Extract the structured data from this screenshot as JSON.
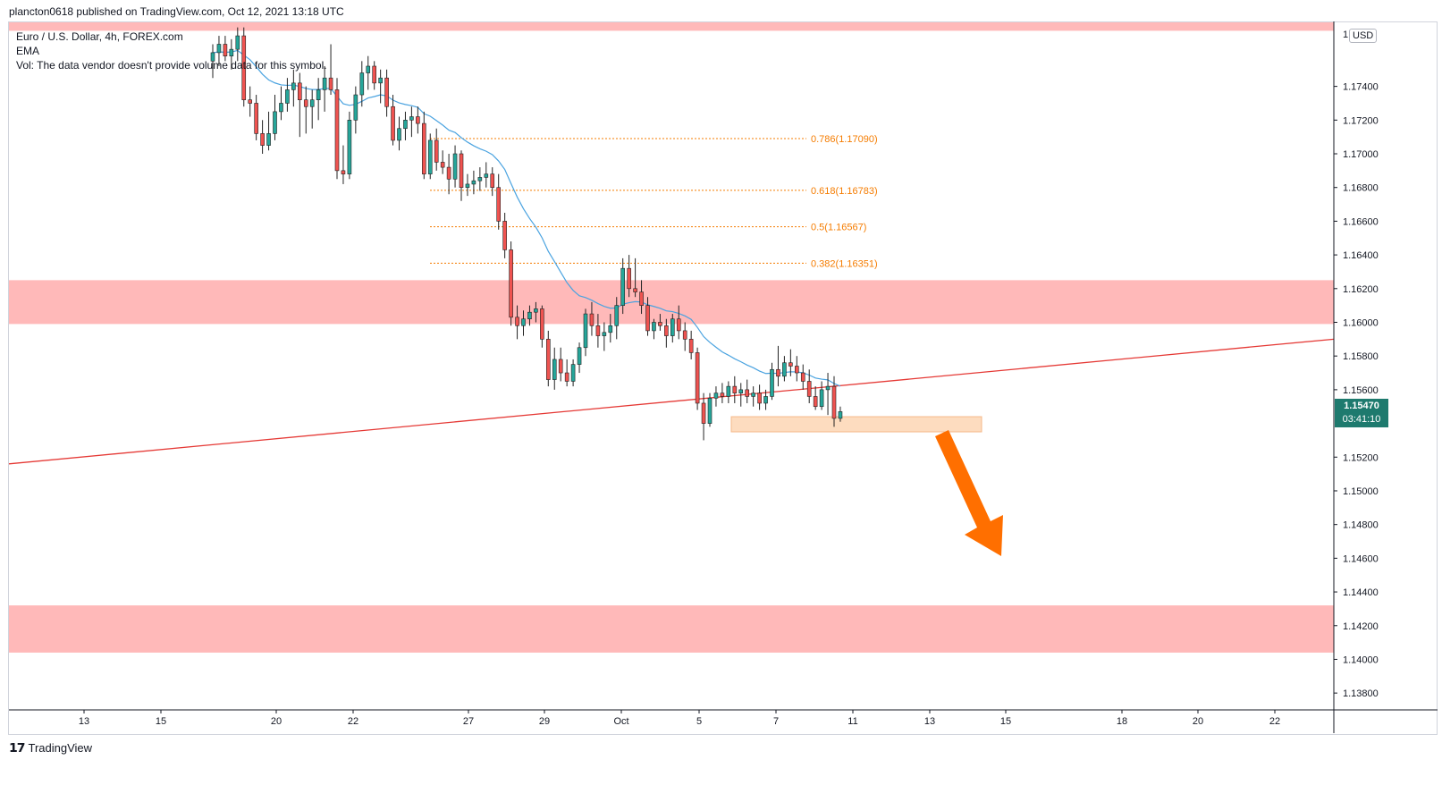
{
  "header": {
    "published": "plancton0618 published on TradingView.com, Oct 12, 2021 13:18 UTC"
  },
  "legend": {
    "symbol": "Euro / U.S. Dollar, 4h, FOREX.com",
    "indicator": "EMA",
    "volume": "Vol: The data vendor doesn't provide volume data for this symbol."
  },
  "footer": {
    "brand": "TradingView"
  },
  "price_axis": {
    "currency": "USD",
    "top_label": "1.1..."
  },
  "last_price": {
    "price": "1.15470",
    "countdown": "03:41:10"
  },
  "colors": {
    "bull": "#26a69a",
    "bear": "#ef5350",
    "ema": "#4aa3e0",
    "zone": "#ffb9b9",
    "support_box": "#fddcbf",
    "fib": "#f57c00",
    "trendline": "#e53935",
    "arrow": "#ff6f00"
  },
  "chart_data": {
    "type": "candlestick",
    "y_axis": {
      "range": [
        1.137,
        1.1778
      ],
      "ticks": [
        1.174,
        1.172,
        1.17,
        1.168,
        1.166,
        1.164,
        1.162,
        1.16,
        1.158,
        1.156,
        1.152,
        1.15,
        1.148,
        1.146,
        1.144,
        1.142,
        1.14,
        1.138
      ]
    },
    "x_axis": {
      "labels": [
        "13",
        "15",
        "20",
        "22",
        "27",
        "29",
        "Oct",
        "5",
        "7",
        "11",
        "13",
        "15",
        "18",
        "20",
        "22"
      ]
    },
    "fibonacci": [
      {
        "label": "0.786(1.17090)",
        "level": 1.1709
      },
      {
        "label": "0.618(1.16783)",
        "level": 1.16783
      },
      {
        "label": "0.5(1.16567)",
        "level": 1.16567
      },
      {
        "label": "0.382(1.16351)",
        "level": 1.16351
      }
    ],
    "zones": [
      {
        "name": "resistance-zone-top",
        "from": 1.1773,
        "to": 1.1778
      },
      {
        "name": "resistance-zone",
        "from": 1.1599,
        "to": 1.1625
      },
      {
        "name": "lower-zone",
        "from": 1.1404,
        "to": 1.1432
      }
    ],
    "support_box": {
      "from": 1.1535,
      "to": 1.1544
    },
    "trendline": {
      "start": 1.1516,
      "end": 1.159
    },
    "candles": [
      [
        1.1755,
        1.1765,
        1.1745,
        1.176
      ],
      [
        1.176,
        1.177,
        1.1752,
        1.1765
      ],
      [
        1.1765,
        1.177,
        1.1755,
        1.1758
      ],
      [
        1.1758,
        1.1768,
        1.175,
        1.1762
      ],
      [
        1.1762,
        1.1775,
        1.1755,
        1.177
      ],
      [
        1.177,
        1.1775,
        1.1728,
        1.1732
      ],
      [
        1.1732,
        1.174,
        1.1722,
        1.173
      ],
      [
        1.173,
        1.1735,
        1.1708,
        1.1712
      ],
      [
        1.1712,
        1.172,
        1.17,
        1.1705
      ],
      [
        1.1705,
        1.1725,
        1.1702,
        1.1712
      ],
      [
        1.1712,
        1.1735,
        1.1708,
        1.1725
      ],
      [
        1.1725,
        1.174,
        1.172,
        1.173
      ],
      [
        1.173,
        1.1745,
        1.1725,
        1.1738
      ],
      [
        1.1738,
        1.175,
        1.1728,
        1.1742
      ],
      [
        1.1742,
        1.1748,
        1.171,
        1.1732
      ],
      [
        1.1732,
        1.174,
        1.1712,
        1.1728
      ],
      [
        1.1728,
        1.1738,
        1.1715,
        1.1732
      ],
      [
        1.1732,
        1.1745,
        1.172,
        1.1738
      ],
      [
        1.1738,
        1.1752,
        1.1725,
        1.1745
      ],
      [
        1.1745,
        1.1765,
        1.1735,
        1.1738
      ],
      [
        1.1738,
        1.1745,
        1.1685,
        1.169
      ],
      [
        1.169,
        1.1705,
        1.1682,
        1.1688
      ],
      [
        1.1688,
        1.1725,
        1.1685,
        1.172
      ],
      [
        1.172,
        1.174,
        1.1712,
        1.1735
      ],
      [
        1.1735,
        1.1755,
        1.1728,
        1.1748
      ],
      [
        1.1748,
        1.1758,
        1.1738,
        1.1752
      ],
      [
        1.1752,
        1.1755,
        1.1738,
        1.1742
      ],
      [
        1.1742,
        1.175,
        1.173,
        1.1745
      ],
      [
        1.1745,
        1.175,
        1.1722,
        1.1728
      ],
      [
        1.1728,
        1.1735,
        1.1705,
        1.1708
      ],
      [
        1.1708,
        1.1722,
        1.1702,
        1.1715
      ],
      [
        1.1715,
        1.1725,
        1.1708,
        1.172
      ],
      [
        1.172,
        1.1728,
        1.171,
        1.1722
      ],
      [
        1.1722,
        1.1728,
        1.1712,
        1.1718
      ],
      [
        1.1718,
        1.1725,
        1.1685,
        1.1688
      ],
      [
        1.1688,
        1.1712,
        1.1685,
        1.1708
      ],
      [
        1.1708,
        1.1715,
        1.169,
        1.1695
      ],
      [
        1.1695,
        1.1702,
        1.1688,
        1.1692
      ],
      [
        1.1692,
        1.17,
        1.1676,
        1.1685
      ],
      [
        1.1685,
        1.1705,
        1.168,
        1.17
      ],
      [
        1.17,
        1.1702,
        1.1672,
        1.168
      ],
      [
        1.168,
        1.1688,
        1.1675,
        1.1682
      ],
      [
        1.1682,
        1.169,
        1.1676,
        1.1684
      ],
      [
        1.1684,
        1.1692,
        1.1678,
        1.1686
      ],
      [
        1.1686,
        1.1695,
        1.168,
        1.1688
      ],
      [
        1.1688,
        1.1692,
        1.1675,
        1.168
      ],
      [
        1.168,
        1.1688,
        1.1655,
        1.166
      ],
      [
        1.166,
        1.1665,
        1.1638,
        1.1643
      ],
      [
        1.1643,
        1.1648,
        1.1598,
        1.1603
      ],
      [
        1.1603,
        1.161,
        1.159,
        1.1598
      ],
      [
        1.1598,
        1.1607,
        1.1592,
        1.1602
      ],
      [
        1.1602,
        1.161,
        1.1598,
        1.1606
      ],
      [
        1.1606,
        1.1612,
        1.16,
        1.1608
      ],
      [
        1.1608,
        1.161,
        1.1585,
        1.159
      ],
      [
        1.159,
        1.1595,
        1.1562,
        1.1566
      ],
      [
        1.1566,
        1.1585,
        1.156,
        1.1578
      ],
      [
        1.1578,
        1.1585,
        1.1565,
        1.157
      ],
      [
        1.157,
        1.1578,
        1.1562,
        1.1565
      ],
      [
        1.1565,
        1.1578,
        1.1562,
        1.1575
      ],
      [
        1.1575,
        1.1588,
        1.157,
        1.1585
      ],
      [
        1.1585,
        1.1608,
        1.158,
        1.1605
      ],
      [
        1.1605,
        1.1612,
        1.1592,
        1.1598
      ],
      [
        1.1598,
        1.1605,
        1.1585,
        1.1592
      ],
      [
        1.1592,
        1.16,
        1.1583,
        1.1594
      ],
      [
        1.1594,
        1.1605,
        1.1588,
        1.1598
      ],
      [
        1.1598,
        1.1615,
        1.159,
        1.161
      ],
      [
        1.161,
        1.1638,
        1.1605,
        1.1632
      ],
      [
        1.1632,
        1.164,
        1.1615,
        1.162
      ],
      [
        1.162,
        1.1638,
        1.1615,
        1.1618
      ],
      [
        1.1618,
        1.1625,
        1.1605,
        1.161
      ],
      [
        1.161,
        1.1615,
        1.1592,
        1.1595
      ],
      [
        1.1595,
        1.1602,
        1.159,
        1.16
      ],
      [
        1.16,
        1.1605,
        1.1595,
        1.1598
      ],
      [
        1.1598,
        1.1602,
        1.1585,
        1.1592
      ],
      [
        1.1592,
        1.1605,
        1.1588,
        1.1602
      ],
      [
        1.1602,
        1.161,
        1.159,
        1.1595
      ],
      [
        1.1595,
        1.16,
        1.1583,
        1.159
      ],
      [
        1.159,
        1.1595,
        1.1578,
        1.1582
      ],
      [
        1.1582,
        1.1585,
        1.1548,
        1.1552
      ],
      [
        1.1552,
        1.1558,
        1.153,
        1.154
      ],
      [
        1.154,
        1.1558,
        1.1538,
        1.1555
      ],
      [
        1.1555,
        1.1562,
        1.155,
        1.1558
      ],
      [
        1.1558,
        1.1564,
        1.1552,
        1.1556
      ],
      [
        1.1556,
        1.1565,
        1.1552,
        1.1562
      ],
      [
        1.1562,
        1.1568,
        1.1552,
        1.1558
      ],
      [
        1.1558,
        1.1564,
        1.155,
        1.156
      ],
      [
        1.156,
        1.1566,
        1.1552,
        1.1556
      ],
      [
        1.1556,
        1.1562,
        1.155,
        1.1558
      ],
      [
        1.1558,
        1.1563,
        1.1548,
        1.1552
      ],
      [
        1.1552,
        1.156,
        1.1548,
        1.1556
      ],
      [
        1.1556,
        1.1576,
        1.1554,
        1.1572
      ],
      [
        1.1572,
        1.1586,
        1.1562,
        1.1568
      ],
      [
        1.1568,
        1.158,
        1.1565,
        1.1576
      ],
      [
        1.1576,
        1.1584,
        1.1568,
        1.1574
      ],
      [
        1.1574,
        1.158,
        1.1565,
        1.157
      ],
      [
        1.157,
        1.1575,
        1.156,
        1.1565
      ],
      [
        1.1565,
        1.1572,
        1.1552,
        1.1556
      ],
      [
        1.1556,
        1.1562,
        1.1548,
        1.155
      ],
      [
        1.155,
        1.1565,
        1.1548,
        1.156
      ],
      [
        1.156,
        1.157,
        1.1545,
        1.1562
      ],
      [
        1.1562,
        1.1568,
        1.1538,
        1.1543
      ],
      [
        1.1543,
        1.155,
        1.1541,
        1.1547
      ]
    ]
  }
}
